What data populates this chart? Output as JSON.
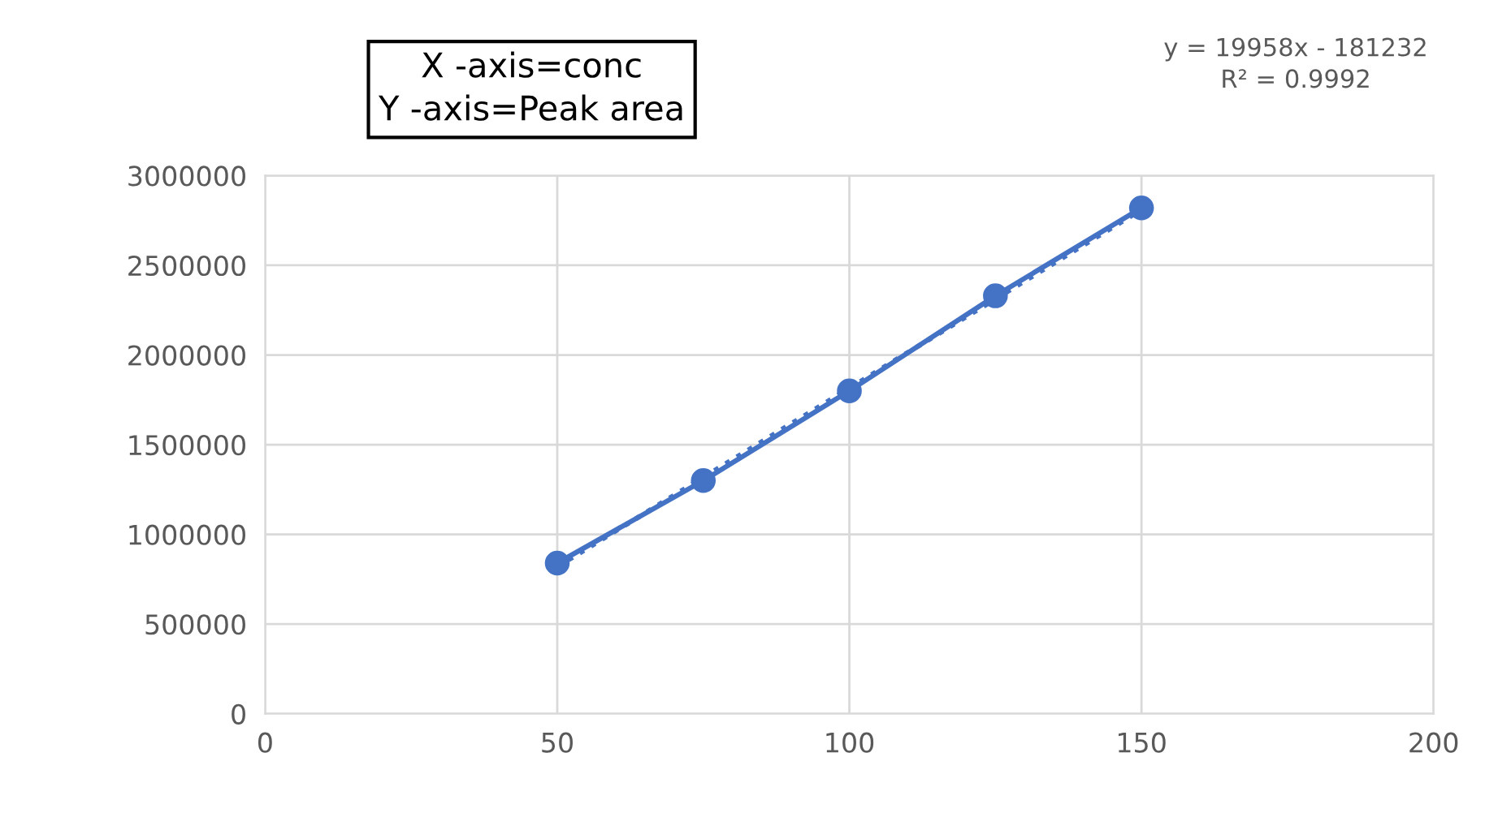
{
  "chart_data": {
    "type": "line",
    "xlim": [
      0,
      200
    ],
    "xticks": [
      0,
      50,
      100,
      150,
      200
    ],
    "ylim": [
      0,
      3000000
    ],
    "yticks": [
      0,
      500000,
      1000000,
      1500000,
      2000000,
      2500000,
      3000000
    ],
    "grid": true,
    "legend": false,
    "series": [
      {
        "color": "#4472c4",
        "marker": "circle",
        "line_style": "solid",
        "x": [
          50,
          75,
          100,
          125,
          150
        ],
        "values": [
          840000,
          1300000,
          1800000,
          2330000,
          2820000
        ]
      },
      {
        "type": "line",
        "color": "#4472c4",
        "marker": "none",
        "line_style": "dotted",
        "x": [
          50,
          150
        ],
        "values": [
          820000,
          2810000
        ]
      }
    ],
    "annotations": [
      "X -axis=conc\nY -axis=Peak area",
      "y = 19958x - 181232\nR² = 0.9992"
    ]
  }
}
